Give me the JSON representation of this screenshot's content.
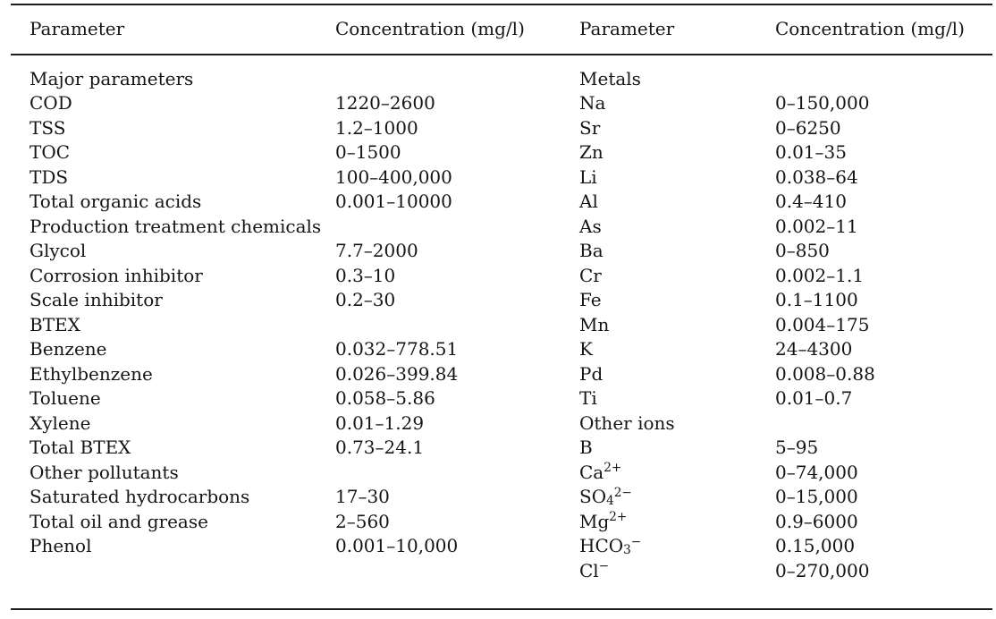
{
  "colors": {
    "text": "#151515",
    "rule": "#1c1c1c",
    "background": "#ffffff"
  },
  "table": {
    "header": [
      "Parameter",
      "Concentration (mg/l)",
      "Parameter",
      "Concentration (mg/l)"
    ],
    "rows": [
      [
        "Major parameters",
        "",
        "Metals",
        ""
      ],
      [
        "COD",
        "1220–2600",
        "Na",
        "0–150,000"
      ],
      [
        "TSS",
        "1.2–1000",
        "Sr",
        "0–6250"
      ],
      [
        "TOC",
        "0–1500",
        "Zn",
        "0.01–35"
      ],
      [
        "TDS",
        "100–400,000",
        "Li",
        "0.038–64"
      ],
      [
        "Total organic acids",
        "0.001–10000",
        "Al",
        "0.4–410"
      ],
      [
        "Production treatment chemicals",
        "",
        "As",
        "0.002–11"
      ],
      [
        "Glycol",
        "7.7–2000",
        "Ba",
        "0–850"
      ],
      [
        "Corrosion inhibitor",
        "0.3–10",
        "Cr",
        "0.002–1.1"
      ],
      [
        "Scale inhibitor",
        "0.2–30",
        "Fe",
        "0.1–1100"
      ],
      [
        "BTEX",
        "",
        "Mn",
        "0.004–175"
      ],
      [
        "Benzene",
        "0.032–778.51",
        "K",
        "24–4300"
      ],
      [
        "Ethylbenzene",
        "0.026–399.84",
        "Pd",
        "0.008–0.88"
      ],
      [
        "Toluene",
        "0.058–5.86",
        "Ti",
        "0.01–0.7"
      ],
      [
        "Xylene",
        "0.01–1.29",
        "Other ions",
        ""
      ],
      [
        "Total BTEX",
        "0.73–24.1",
        "B",
        "5–95"
      ],
      [
        "Other pollutants",
        "",
        "Ca^2+^",
        "0–74,000"
      ],
      [
        "Saturated hydrocarbons",
        "17–30",
        "SO~4~^2−^",
        "0–15,000"
      ],
      [
        "Total oil and grease",
        "2–560",
        "Mg^2+^",
        "0.9–6000"
      ],
      [
        "Phenol",
        "0.001–10,000",
        "HCO~3~^−^",
        "0.15,000"
      ],
      [
        "",
        "",
        "Cl^−^",
        "0–270,000"
      ]
    ]
  }
}
